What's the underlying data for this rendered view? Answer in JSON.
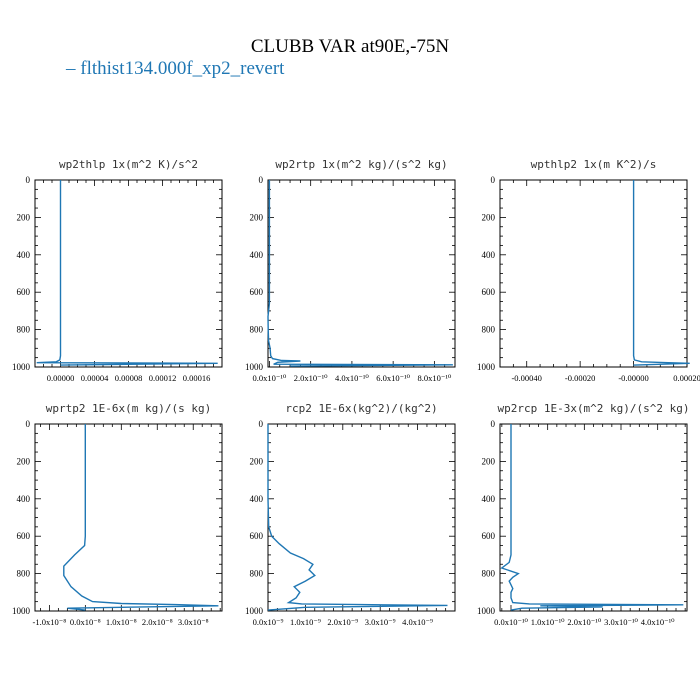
{
  "title": "CLUBB VAR at90E,-75N",
  "legend": {
    "dash": "–",
    "label": "flthist134.000f_xp2_revert"
  },
  "colors": {
    "series": "#1f77b4",
    "axis": "#000000",
    "title": "#333333"
  },
  "chart_data": [
    {
      "type": "line",
      "title": "wp2thlp  1x(m^2 K)/s^2",
      "series_name": "flthist134.000f_xp2_revert",
      "xlim": [
        -3e-05,
        0.00019
      ],
      "ylim": [
        1000,
        0
      ],
      "xticks": [
        "0.00000",
        "0.00004",
        "0.00008",
        "0.00012",
        "0.00016"
      ],
      "yticks": [
        "0",
        "200",
        "400",
        "600",
        "800",
        "1000"
      ],
      "points": [
        [
          0.0,
          0
        ],
        [
          0.0,
          300
        ],
        [
          0.0,
          600
        ],
        [
          0.0,
          800
        ],
        [
          0.0,
          900
        ],
        [
          0.0,
          940
        ],
        [
          -8e-07,
          962
        ],
        [
          -5e-06,
          972
        ],
        [
          -2.2e-05,
          976
        ],
        [
          -2.8e-05,
          977
        ],
        [
          0.000185,
          980
        ],
        [
          0.0,
          990
        ]
      ]
    },
    {
      "type": "line",
      "title": "wp2rtp  1x(m^2 kg)/(s^2 kg)",
      "series_name": "flthist134.000f_xp2_revert",
      "xlim": [
        -7e-12,
        9e-10
      ],
      "ylim": [
        1000,
        0
      ],
      "xticks": [
        "0.0x10⁻¹⁰",
        "2.0x10⁻¹⁰",
        "4.0x10⁻¹⁰",
        "6.0x10⁻¹⁰",
        "8.0x10⁻¹⁰"
      ],
      "yticks": [
        "0",
        "200",
        "400",
        "600",
        "800",
        "1000"
      ],
      "points": [
        [
          0.0,
          0
        ],
        [
          0.0,
          300
        ],
        [
          0.0,
          600
        ],
        [
          0.0,
          660
        ],
        [
          -3e-12,
          690
        ],
        [
          -7e-12,
          730
        ],
        [
          -6e-12,
          800
        ],
        [
          -4e-12,
          860
        ],
        [
          3e-12,
          900
        ],
        [
          6e-12,
          940
        ],
        [
          1.5e-11,
          955
        ],
        [
          6e-11,
          965
        ],
        [
          1.5e-10,
          968
        ],
        [
          4e-11,
          975
        ],
        [
          2e-11,
          985
        ],
        [
          8.9e-10,
          988
        ],
        [
          1e-10,
          995
        ]
      ]
    },
    {
      "type": "line",
      "title": "wpthlp2  1x(m K^2)/s",
      "series_name": "flthist134.000f_xp2_revert",
      "xlim": [
        -0.0005,
        0.0002
      ],
      "ylim": [
        1000,
        0
      ],
      "xticks": [
        "-0.00040",
        "-0.00020",
        "-0.00000",
        "0.00020"
      ],
      "yticks": [
        "0",
        "200",
        "400",
        "600",
        "800",
        "1000"
      ],
      "points": [
        [
          0.0,
          0
        ],
        [
          0.0,
          300
        ],
        [
          0.0,
          600
        ],
        [
          0.0,
          800
        ],
        [
          0.0,
          900
        ],
        [
          0.0,
          940
        ],
        [
          3e-06,
          962
        ],
        [
          3e-05,
          972
        ],
        [
          0.00013,
          977
        ],
        [
          0.00021,
          980
        ],
        [
          0.0,
          990
        ]
      ]
    },
    {
      "type": "line",
      "title": "wprtp2  1E-6x(m kg)/(s kg)",
      "series_name": "flthist134.000f_xp2_revert",
      "xlim": [
        -1.4e-08,
        3.8e-08
      ],
      "ylim": [
        1000,
        0
      ],
      "xticks": [
        "-1.0x10⁻⁸",
        "0.0x10⁻⁸",
        "1.0x10⁻⁸",
        "2.0x10⁻⁸",
        "3.0x10⁻⁸"
      ],
      "yticks": [
        "0",
        "200",
        "400",
        "600",
        "800",
        "1000"
      ],
      "points": [
        [
          0.0,
          0
        ],
        [
          0.0,
          300
        ],
        [
          0.0,
          600
        ],
        [
          -2e-10,
          650
        ],
        [
          -3e-09,
          700
        ],
        [
          -6e-09,
          760
        ],
        [
          -6e-09,
          810
        ],
        [
          -4e-09,
          870
        ],
        [
          -1e-09,
          920
        ],
        [
          2e-09,
          950
        ],
        [
          1e-08,
          960
        ],
        [
          2.5e-08,
          966
        ],
        [
          3.7e-08,
          972
        ],
        [
          1e-08,
          980
        ],
        [
          -5e-09,
          985
        ],
        [
          0.0,
          995
        ]
      ]
    },
    {
      "type": "line",
      "title": "rcp2  1E-6x(kg^2)/(kg^2)",
      "series_name": "flthist134.000f_xp2_revert",
      "xlim": [
        0.0,
        5e-09
      ],
      "ylim": [
        1000,
        0
      ],
      "xticks": [
        "0.0x10⁻⁹",
        "1.0x10⁻⁹",
        "2.0x10⁻⁹",
        "3.0x10⁻⁹",
        "4.0x10⁻⁹"
      ],
      "yticks": [
        "0",
        "200",
        "400",
        "600",
        "800",
        "1000"
      ],
      "points": [
        [
          0.0,
          0
        ],
        [
          0.0,
          400
        ],
        [
          2e-11,
          550
        ],
        [
          1e-10,
          600
        ],
        [
          3e-10,
          640
        ],
        [
          6e-10,
          690
        ],
        [
          9.5e-10,
          720
        ],
        [
          1.2e-09,
          750
        ],
        [
          1.1e-09,
          780
        ],
        [
          1.25e-09,
          810
        ],
        [
          1e-09,
          840
        ],
        [
          7e-10,
          870
        ],
        [
          8.5e-10,
          900
        ],
        [
          7.5e-10,
          930
        ],
        [
          5.5e-10,
          955
        ],
        [
          9e-10,
          962
        ],
        [
          2.5e-09,
          966
        ],
        [
          4.8e-09,
          970
        ],
        [
          1e-09,
          980
        ],
        [
          0.0,
          995
        ]
      ]
    },
    {
      "type": "line",
      "title": "wp2rcp  1E-3x(m^2 kg)/(s^2 kg)",
      "series_name": "flthist134.000f_xp2_revert",
      "xlim": [
        -3e-11,
        4.8e-10
      ],
      "ylim": [
        1000,
        0
      ],
      "xticks": [
        "0.0x10⁻¹⁰",
        "1.0x10⁻¹⁰",
        "2.0x10⁻¹⁰",
        "3.0x10⁻¹⁰",
        "4.0x10⁻¹⁰"
      ],
      "yticks": [
        "0",
        "200",
        "400",
        "600",
        "800",
        "1000"
      ],
      "points": [
        [
          0.0,
          0
        ],
        [
          0.0,
          300
        ],
        [
          0.0,
          600
        ],
        [
          0.0,
          700
        ],
        [
          -5e-12,
          740
        ],
        [
          -2.5e-11,
          770
        ],
        [
          2e-11,
          800
        ],
        [
          5e-12,
          820
        ],
        [
          -5e-12,
          840
        ],
        [
          0.0,
          860
        ],
        [
          5e-12,
          880
        ],
        [
          0.0,
          900
        ],
        [
          0.0,
          930
        ],
        [
          5e-12,
          955
        ],
        [
          5e-11,
          962
        ],
        [
          4.7e-10,
          967
        ],
        [
          8e-11,
          972
        ],
        [
          2.5e-10,
          978
        ],
        [
          3e-11,
          985
        ],
        [
          0.0,
          995
        ]
      ]
    }
  ]
}
